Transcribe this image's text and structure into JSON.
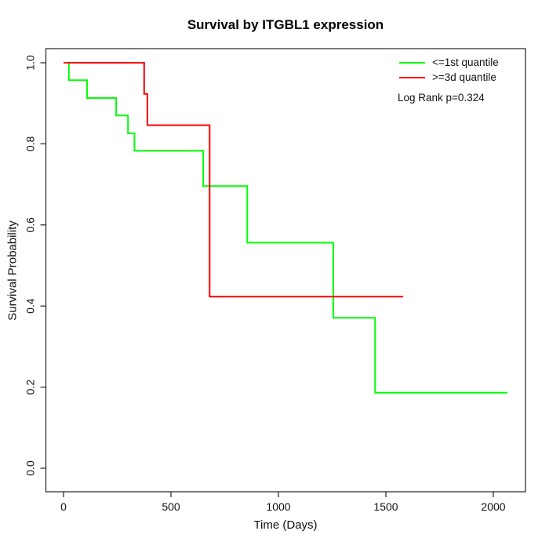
{
  "chart_data": {
    "type": "line",
    "subtype": "kaplan-meier-step",
    "title": "Survival by ITGBL1 expression",
    "xlabel": "Time (Days)",
    "ylabel": "Survival Probability",
    "x_ticks": [
      0,
      500,
      1000,
      1500,
      2000
    ],
    "y_ticks": [
      0.0,
      0.2,
      0.4,
      0.6,
      0.8,
      1.0
    ],
    "xlim": [
      0,
      2100
    ],
    "ylim": [
      0.0,
      1.0
    ],
    "grid": false,
    "legend_position": "top-right",
    "axis_color": "#333333",
    "annotation": "Log Rank p=0.324",
    "series": [
      {
        "name": "<=1st quantile",
        "color": "#00ff00",
        "step_times": [
          0,
          25,
          110,
          245,
          300,
          330,
          650,
          855,
          1255,
          1450
        ],
        "survival": [
          1.0,
          0.957,
          0.913,
          0.87,
          0.826,
          0.783,
          0.696,
          0.556,
          0.371,
          0.186
        ],
        "end_time": 2065
      },
      {
        "name": ">=3d quantile",
        "color": "#ff0000",
        "step_times": [
          0,
          375,
          390,
          680
        ],
        "survival": [
          1.0,
          0.923,
          0.846,
          0.423
        ],
        "end_time": 1580
      }
    ]
  }
}
